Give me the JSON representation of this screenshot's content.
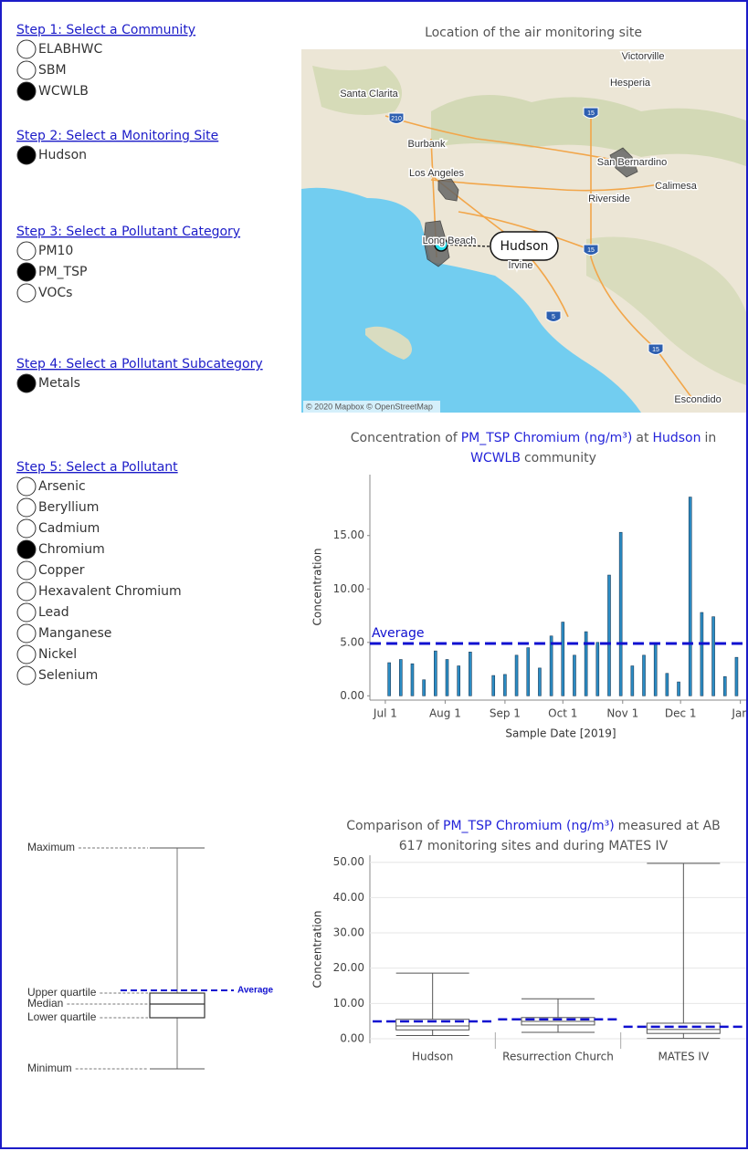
{
  "controls": [
    {
      "label": "Step 1: Select a Community",
      "options": [
        "ELABHWC",
        "SBM",
        "WCWLB"
      ],
      "selected": 2
    },
    {
      "label": "Step 2: Select a Monitoring Site",
      "options": [
        "Hudson"
      ],
      "selected": 0
    },
    {
      "label": "Step 3: Select a Pollutant Category",
      "options": [
        "PM10",
        "PM_TSP",
        "VOCs"
      ],
      "selected": 1
    },
    {
      "label": "Step 4: Select a Pollutant Subcategory",
      "options": [
        "Metals"
      ],
      "selected": 0
    },
    {
      "label": "Step 5: Select a Pollutant",
      "options": [
        "Arsenic",
        "Beryllium",
        "Cadmium",
        "Chromium",
        "Copper",
        "Hexavalent Chromium",
        "Lead",
        "Manganese",
        "Nickel",
        "Selenium"
      ],
      "selected": 3
    }
  ],
  "map": {
    "title": "Location of the air monitoring site",
    "labels": [
      "Victorville",
      "Hesperia",
      "Santa Clarita",
      "Burbank",
      "San Bernardino",
      "Los Angeles",
      "Calimesa",
      "Riverside",
      "Long Beach",
      "Irvine",
      "Escondido"
    ],
    "highways": [
      "210",
      "15",
      "15",
      "5",
      "15"
    ],
    "site": "Hudson",
    "attribution": "© 2020 Mapbox © OpenStreetMap"
  },
  "chart_data": [
    {
      "type": "bar",
      "title": [
        "Concentration of",
        "PM_TSP Chromium (ng/m³)",
        "at",
        "Hudson",
        "in",
        "WCWLB",
        "community"
      ],
      "highlight_color": "#2323d9",
      "x": [
        "2019-07-03",
        "2019-07-09",
        "2019-07-15",
        "2019-07-21",
        "2019-07-27",
        "2019-08-02",
        "2019-08-08",
        "2019-08-14",
        "2019-08-26",
        "2019-09-01",
        "2019-09-07",
        "2019-09-13",
        "2019-09-19",
        "2019-09-25",
        "2019-10-01",
        "2019-10-07",
        "2019-10-13",
        "2019-10-19",
        "2019-10-25",
        "2019-10-31",
        "2019-11-06",
        "2019-11-12",
        "2019-11-18",
        "2019-11-24",
        "2019-11-30",
        "2019-12-06",
        "2019-12-12",
        "2019-12-18",
        "2019-12-24",
        "2019-12-30"
      ],
      "values": [
        3.1,
        3.4,
        3.0,
        1.5,
        4.2,
        3.4,
        2.8,
        4.1,
        1.9,
        2.0,
        3.8,
        4.5,
        2.6,
        5.6,
        6.9,
        3.8,
        6.0,
        5.0,
        11.3,
        15.3,
        2.8,
        3.8,
        5.0,
        2.1,
        1.3,
        18.6,
        7.8,
        7.4,
        1.8,
        3.6
      ],
      "color": "#2b8cc4",
      "average": 4.9,
      "average_label": "Average",
      "average_color": "#1010d0",
      "xlim": [
        "2019-06-23",
        "2020-01-04"
      ],
      "xticks": [
        {
          "value": "2019-07-01",
          "label": "Jul 1"
        },
        {
          "value": "2019-08-01",
          "label": "Aug 1"
        },
        {
          "value": "2019-09-01",
          "label": "Sep 1"
        },
        {
          "value": "2019-10-01",
          "label": "Oct 1"
        },
        {
          "value": "2019-11-01",
          "label": "Nov 1"
        },
        {
          "value": "2019-12-01",
          "label": "Dec 1"
        },
        {
          "value": "2020-01-01",
          "label": "Jan"
        }
      ],
      "ylim": [
        -0.4,
        20.7
      ],
      "yticks": [
        {
          "value": 0,
          "label": "0.00"
        },
        {
          "value": 5,
          "label": "5.00"
        },
        {
          "value": 10,
          "label": "10.00"
        },
        {
          "value": 15,
          "label": "15.00"
        }
      ],
      "xlabel": "Sample Date [2019]",
      "ylabel": "Concentration",
      "grid": false
    },
    {
      "type": "box",
      "title": [
        "Comparison of",
        "PM_TSP Chromium (ng/m³)",
        "measured at AB",
        "617 monitoring sites and during MATES IV"
      ],
      "highlight_color": "#2323d9",
      "categories": [
        "Hudson",
        "Resurrection Church",
        "MATES IV"
      ],
      "min": [
        0.9,
        1.8,
        0.1
      ],
      "q1": [
        2.5,
        3.9,
        1.5
      ],
      "median": [
        3.6,
        4.9,
        2.6
      ],
      "q3": [
        5.5,
        6.0,
        4.4
      ],
      "max": [
        18.6,
        11.3,
        49.7
      ],
      "average": [
        4.9,
        5.5,
        3.4
      ],
      "color": "#555555",
      "average_color": "#1010d0",
      "ylim": [
        -1.3,
        52
      ],
      "yticks": [
        {
          "value": 0,
          "label": "0.00"
        },
        {
          "value": 10,
          "label": "10.00"
        },
        {
          "value": 20,
          "label": "20.00"
        },
        {
          "value": 30,
          "label": "30.00"
        },
        {
          "value": 40,
          "label": "40.00"
        },
        {
          "value": 50,
          "label": "50.00"
        }
      ],
      "ylabel": "Concentration",
      "grid": true
    }
  ],
  "box_legend": {
    "labels": [
      "Maximum",
      "Upper quartile",
      "Median",
      "Lower quartile",
      "Minimum"
    ],
    "average": "Average"
  }
}
